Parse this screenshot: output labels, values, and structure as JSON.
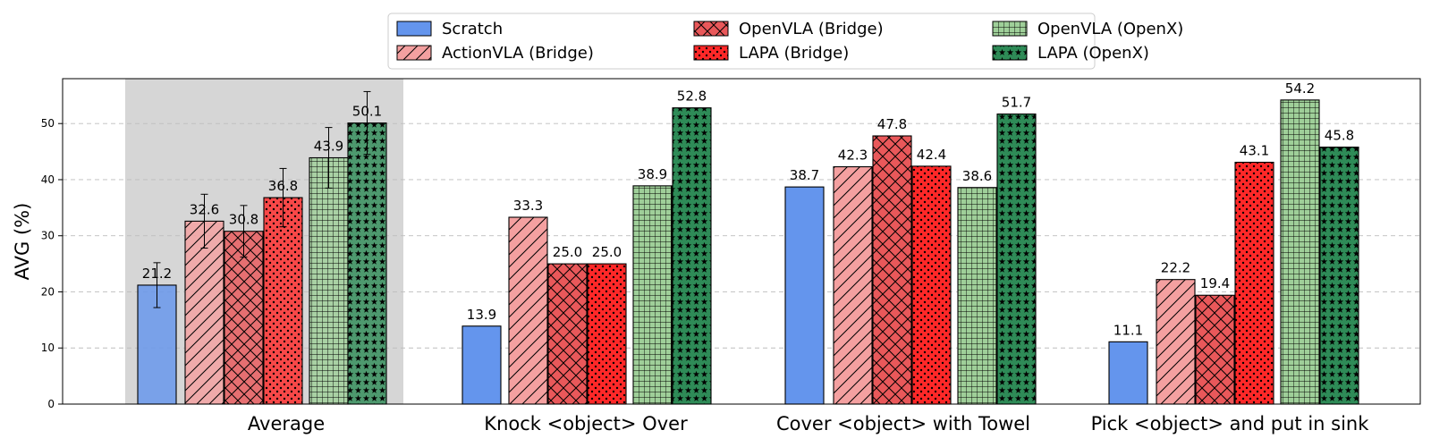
{
  "chart_data": {
    "type": "bar",
    "title": "",
    "xlabel": "",
    "ylabel": "AVG (%)",
    "ylim": [
      0,
      58
    ],
    "yticks": [
      0,
      10,
      20,
      30,
      40,
      50
    ],
    "grid": "horizontal dashed",
    "legend_position": "top-center",
    "highlighted_category": "Average",
    "categories": [
      "Average",
      "Knock <object> Over",
      "Cover <object> with Towel",
      "Pick <object> and put in sink"
    ],
    "series": [
      {
        "name": "Scratch",
        "color": "#6495ed",
        "pattern": "none",
        "values": [
          21.2,
          13.9,
          38.7,
          11.1
        ],
        "errors": [
          4.0,
          null,
          null,
          null
        ]
      },
      {
        "name": "ActionVLA (Bridge)",
        "color": "#f4a0a0",
        "pattern": "diagonal",
        "values": [
          32.6,
          33.3,
          42.3,
          22.2
        ],
        "errors": [
          4.8,
          null,
          null,
          null
        ]
      },
      {
        "name": "OpenVLA (Bridge)",
        "color": "#e9585a",
        "pattern": "crosshatch",
        "values": [
          30.8,
          25.0,
          47.8,
          19.4
        ],
        "errors": [
          4.6,
          null,
          null,
          null
        ]
      },
      {
        "name": "LAPA (Bridge)",
        "color": "#ff2828",
        "pattern": "dots",
        "values": [
          36.8,
          25.0,
          42.4,
          43.1
        ],
        "errors": [
          5.2,
          null,
          null,
          null
        ]
      },
      {
        "name": "OpenVLA (OpenX)",
        "color": "#9fcf99",
        "pattern": "grid",
        "values": [
          43.9,
          38.9,
          38.6,
          54.2
        ],
        "errors": [
          5.4,
          null,
          null,
          null
        ]
      },
      {
        "name": "LAPA (OpenX)",
        "color": "#2e8b57",
        "pattern": "stars",
        "values": [
          50.1,
          52.8,
          51.7,
          45.8
        ],
        "errors": [
          5.6,
          null,
          null,
          null
        ]
      }
    ]
  }
}
